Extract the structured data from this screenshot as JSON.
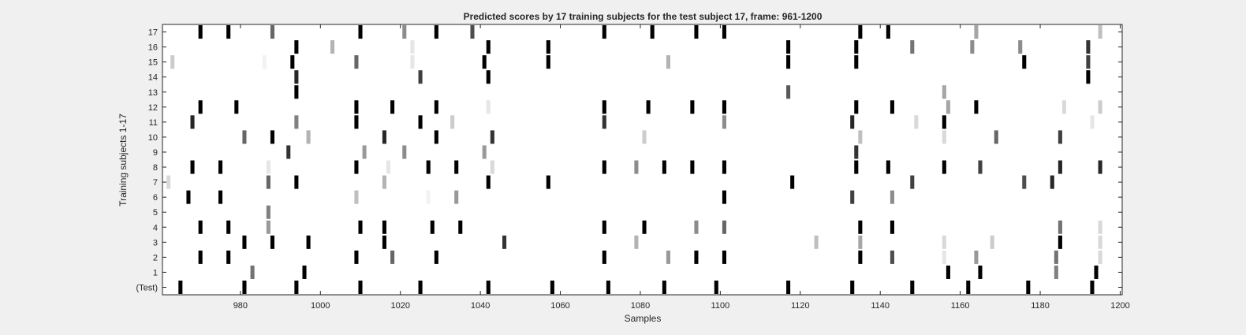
{
  "chart_data": {
    "type": "heatmap",
    "title": "Predicted scores by 17 training subjects for the test subject 17, frame: 961-1200",
    "xlabel": "Samples",
    "ylabel": "Training subjects 1-17",
    "xlim": [
      961,
      1200
    ],
    "x_ticks": [
      "980",
      "1000",
      "1020",
      "1040",
      "1060",
      "1080",
      "1100",
      "1120",
      "1140",
      "1160",
      "1180",
      "1200"
    ],
    "x_tick_values": [
      980,
      1000,
      1020,
      1040,
      1060,
      1080,
      1100,
      1120,
      1140,
      1160,
      1180,
      1200
    ],
    "rows": [
      "(Test)",
      "1",
      "2",
      "3",
      "4",
      "5",
      "6",
      "7",
      "8",
      "9",
      "10",
      "11",
      "12",
      "13",
      "14",
      "15",
      "16",
      "17"
    ],
    "colormap": "gray (1 = black, 0 = white)",
    "cells": [
      {
        "row": "(Test)",
        "points": [
          [
            965,
            1
          ],
          [
            981,
            1
          ],
          [
            994,
            1
          ],
          [
            1010,
            1
          ],
          [
            1025,
            1
          ],
          [
            1042,
            1
          ],
          [
            1058,
            1
          ],
          [
            1072,
            1
          ],
          [
            1086,
            1
          ],
          [
            1099,
            1
          ],
          [
            1117,
            1
          ],
          [
            1133,
            1
          ],
          [
            1148,
            1
          ],
          [
            1162,
            1
          ],
          [
            1177,
            1
          ],
          [
            1193,
            1
          ]
        ]
      },
      {
        "row": "1",
        "points": [
          [
            983,
            0.55
          ],
          [
            996,
            1
          ],
          [
            1157,
            1
          ],
          [
            1165,
            1
          ],
          [
            1184,
            0.5
          ],
          [
            1194,
            1
          ]
        ]
      },
      {
        "row": "2",
        "points": [
          [
            970,
            1
          ],
          [
            977,
            1
          ],
          [
            1009,
            1
          ],
          [
            1018,
            0.6
          ],
          [
            1029,
            1
          ],
          [
            1071,
            1
          ],
          [
            1087,
            0.4
          ],
          [
            1094,
            1
          ],
          [
            1101,
            1
          ],
          [
            1135,
            1
          ],
          [
            1143,
            0.7
          ],
          [
            1156,
            0.1
          ],
          [
            1164,
            0.4
          ],
          [
            1184,
            0.55
          ],
          [
            1195,
            0.15
          ]
        ]
      },
      {
        "row": "3",
        "points": [
          [
            981,
            1
          ],
          [
            988,
            1
          ],
          [
            997,
            1
          ],
          [
            1016,
            1
          ],
          [
            1046,
            0.8
          ],
          [
            1079,
            0.3
          ],
          [
            1124,
            0.25
          ],
          [
            1135,
            0.35
          ],
          [
            1156,
            0.15
          ],
          [
            1168,
            0.2
          ],
          [
            1185,
            1
          ],
          [
            1195,
            0.15
          ]
        ]
      },
      {
        "row": "4",
        "points": [
          [
            970,
            1
          ],
          [
            977,
            1
          ],
          [
            987,
            0.4
          ],
          [
            1010,
            1
          ],
          [
            1016,
            1
          ],
          [
            1028,
            1
          ],
          [
            1035,
            1
          ],
          [
            1071,
            1
          ],
          [
            1081,
            1
          ],
          [
            1094,
            0.45
          ],
          [
            1101,
            0.6
          ],
          [
            1135,
            1
          ],
          [
            1143,
            1
          ],
          [
            1185,
            0.55
          ],
          [
            1195,
            0.15
          ]
        ]
      },
      {
        "row": "5",
        "points": [
          [
            987,
            0.5
          ]
        ]
      },
      {
        "row": "6",
        "points": [
          [
            967,
            1
          ],
          [
            975,
            1
          ],
          [
            1009,
            0.25
          ],
          [
            1027,
            0.05
          ],
          [
            1034,
            0.4
          ],
          [
            1101,
            1
          ],
          [
            1133,
            0.75
          ],
          [
            1143,
            0.45
          ]
        ]
      },
      {
        "row": "7",
        "points": [
          [
            962,
            0.15
          ],
          [
            987,
            0.6
          ],
          [
            994,
            1
          ],
          [
            1016,
            0.3
          ],
          [
            1042,
            1
          ],
          [
            1057,
            1
          ],
          [
            1118,
            1
          ],
          [
            1148,
            0.75
          ],
          [
            1176,
            0.7
          ],
          [
            1183,
            0.85
          ]
        ]
      },
      {
        "row": "8",
        "points": [
          [
            968,
            1
          ],
          [
            975,
            1
          ],
          [
            987,
            0.1
          ],
          [
            1009,
            1
          ],
          [
            1017,
            0.1
          ],
          [
            1027,
            1
          ],
          [
            1034,
            1
          ],
          [
            1043,
            0.15
          ],
          [
            1071,
            1
          ],
          [
            1079,
            0.45
          ],
          [
            1086,
            1
          ],
          [
            1093,
            1
          ],
          [
            1101,
            1
          ],
          [
            1134,
            1
          ],
          [
            1142,
            1
          ],
          [
            1156,
            1
          ],
          [
            1165,
            0.75
          ],
          [
            1185,
            0.85
          ],
          [
            1195,
            0.85
          ]
        ]
      },
      {
        "row": "9",
        "points": [
          [
            992,
            0.8
          ],
          [
            1011,
            0.4
          ],
          [
            1021,
            0.45
          ],
          [
            1041,
            0.4
          ],
          [
            1134,
            0.8
          ]
        ]
      },
      {
        "row": "10",
        "points": [
          [
            981,
            0.6
          ],
          [
            988,
            1
          ],
          [
            997,
            0.3
          ],
          [
            1016,
            0.85
          ],
          [
            1029,
            1
          ],
          [
            1043,
            0.8
          ],
          [
            1081,
            0.2
          ],
          [
            1135,
            0.25
          ],
          [
            1156,
            0.15
          ],
          [
            1169,
            0.6
          ],
          [
            1185,
            0.75
          ]
        ]
      },
      {
        "row": "11",
        "points": [
          [
            968,
            0.85
          ],
          [
            994,
            0.5
          ],
          [
            1009,
            1
          ],
          [
            1025,
            1
          ],
          [
            1033,
            0.2
          ],
          [
            1071,
            0.8
          ],
          [
            1101,
            0.45
          ],
          [
            1133,
            0.85
          ],
          [
            1149,
            0.15
          ],
          [
            1156,
            1
          ],
          [
            1193,
            0.1
          ]
        ]
      },
      {
        "row": "12",
        "points": [
          [
            970,
            1
          ],
          [
            979,
            1
          ],
          [
            1009,
            1
          ],
          [
            1018,
            1
          ],
          [
            1029,
            1
          ],
          [
            1042,
            0.1
          ],
          [
            1071,
            1
          ],
          [
            1082,
            1
          ],
          [
            1093,
            1
          ],
          [
            1101,
            1
          ],
          [
            1134,
            1
          ],
          [
            1143,
            1
          ],
          [
            1157,
            0.35
          ],
          [
            1164,
            1
          ],
          [
            1186,
            0.15
          ],
          [
            1195,
            0.2
          ]
        ]
      },
      {
        "row": "13",
        "points": [
          [
            994,
            1
          ],
          [
            1117,
            0.65
          ],
          [
            1156,
            0.35
          ]
        ]
      },
      {
        "row": "14",
        "points": [
          [
            994,
            0.85
          ],
          [
            1025,
            0.75
          ],
          [
            1042,
            1
          ],
          [
            1192,
            1
          ]
        ]
      },
      {
        "row": "15",
        "points": [
          [
            963,
            0.2
          ],
          [
            986,
            0.05
          ],
          [
            993,
            1
          ],
          [
            1009,
            0.6
          ],
          [
            1023,
            0.1
          ],
          [
            1041,
            1
          ],
          [
            1057,
            1
          ],
          [
            1087,
            0.3
          ],
          [
            1117,
            1
          ],
          [
            1134,
            1
          ],
          [
            1176,
            1
          ],
          [
            1192,
            0.75
          ]
        ]
      },
      {
        "row": "16",
        "points": [
          [
            994,
            1
          ],
          [
            1003,
            0.3
          ],
          [
            1023,
            0.1
          ],
          [
            1042,
            1
          ],
          [
            1057,
            1
          ],
          [
            1117,
            1
          ],
          [
            1134,
            1
          ],
          [
            1148,
            0.55
          ],
          [
            1163,
            0.45
          ],
          [
            1175,
            0.45
          ],
          [
            1192,
            0.8
          ]
        ]
      },
      {
        "row": "17",
        "points": [
          [
            970,
            1
          ],
          [
            977,
            1
          ],
          [
            988,
            0.6
          ],
          [
            1010,
            1
          ],
          [
            1021,
            0.45
          ],
          [
            1029,
            1
          ],
          [
            1038,
            0.7
          ],
          [
            1071,
            1
          ],
          [
            1083,
            1
          ],
          [
            1094,
            1
          ],
          [
            1101,
            1
          ],
          [
            1135,
            1
          ],
          [
            1142,
            1
          ],
          [
            1164,
            0.35
          ],
          [
            1195,
            0.25
          ]
        ]
      }
    ]
  }
}
